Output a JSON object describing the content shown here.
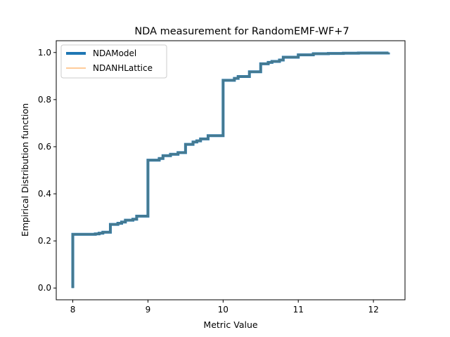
{
  "chart_data": {
    "type": "line",
    "title": "NDA measurement for RandomEMF-WF+7",
    "xlabel": "Metric Value",
    "ylabel": "Empirical Distribution function",
    "xlim": [
      7.78,
      12.42
    ],
    "ylim": [
      -0.05,
      1.05
    ],
    "xticks": [
      8,
      9,
      10,
      11,
      12
    ],
    "yticks": [
      0.0,
      0.2,
      0.4,
      0.6,
      0.8,
      1.0
    ],
    "xtick_labels": [
      "8",
      "9",
      "10",
      "11",
      "12"
    ],
    "ytick_labels": [
      "0.0",
      "0.2",
      "0.4",
      "0.6",
      "0.8",
      "1.0"
    ],
    "grid": false,
    "legend_position": "top-left",
    "colors": {
      "NDAModel": "#1f77b4",
      "NDANHLattice": "#ffbb78",
      "overlap": "#4a7a8c"
    },
    "series": [
      {
        "name": "NDAModel",
        "x": [
          8.0,
          8.0,
          8.3,
          8.35,
          8.4,
          8.5,
          8.6,
          8.65,
          8.7,
          8.8,
          8.85,
          9.0,
          9.15,
          9.2,
          9.3,
          9.4,
          9.5,
          9.6,
          9.65,
          9.7,
          9.8,
          10.0,
          10.15,
          10.2,
          10.35,
          10.5,
          10.6,
          10.65,
          10.75,
          10.8,
          11.0,
          11.2,
          11.4,
          11.6,
          11.8,
          12.2
        ],
        "y": [
          0.0,
          0.228,
          0.23,
          0.233,
          0.237,
          0.27,
          0.275,
          0.28,
          0.288,
          0.292,
          0.305,
          0.543,
          0.55,
          0.562,
          0.568,
          0.575,
          0.61,
          0.62,
          0.625,
          0.633,
          0.647,
          0.882,
          0.89,
          0.898,
          0.918,
          0.952,
          0.958,
          0.962,
          0.968,
          0.98,
          0.99,
          0.995,
          0.996,
          0.997,
          0.998,
          1.0
        ]
      },
      {
        "name": "NDANHLattice",
        "x": [
          8.0,
          8.0,
          8.3,
          8.35,
          8.4,
          8.5,
          8.6,
          8.65,
          8.7,
          8.8,
          8.85,
          9.0,
          9.15,
          9.2,
          9.3,
          9.4,
          9.5,
          9.6,
          9.65,
          9.7,
          9.8,
          10.0,
          10.15,
          10.2,
          10.35,
          10.5,
          10.6,
          10.65,
          10.75,
          10.8,
          11.0,
          11.2,
          11.4,
          11.6,
          11.8,
          12.2
        ],
        "y": [
          0.0,
          0.228,
          0.23,
          0.233,
          0.237,
          0.27,
          0.275,
          0.28,
          0.288,
          0.292,
          0.305,
          0.543,
          0.55,
          0.562,
          0.568,
          0.575,
          0.61,
          0.62,
          0.625,
          0.633,
          0.647,
          0.882,
          0.89,
          0.898,
          0.918,
          0.952,
          0.958,
          0.962,
          0.968,
          0.98,
          0.99,
          0.995,
          0.996,
          0.997,
          0.998,
          1.0
        ]
      }
    ]
  }
}
